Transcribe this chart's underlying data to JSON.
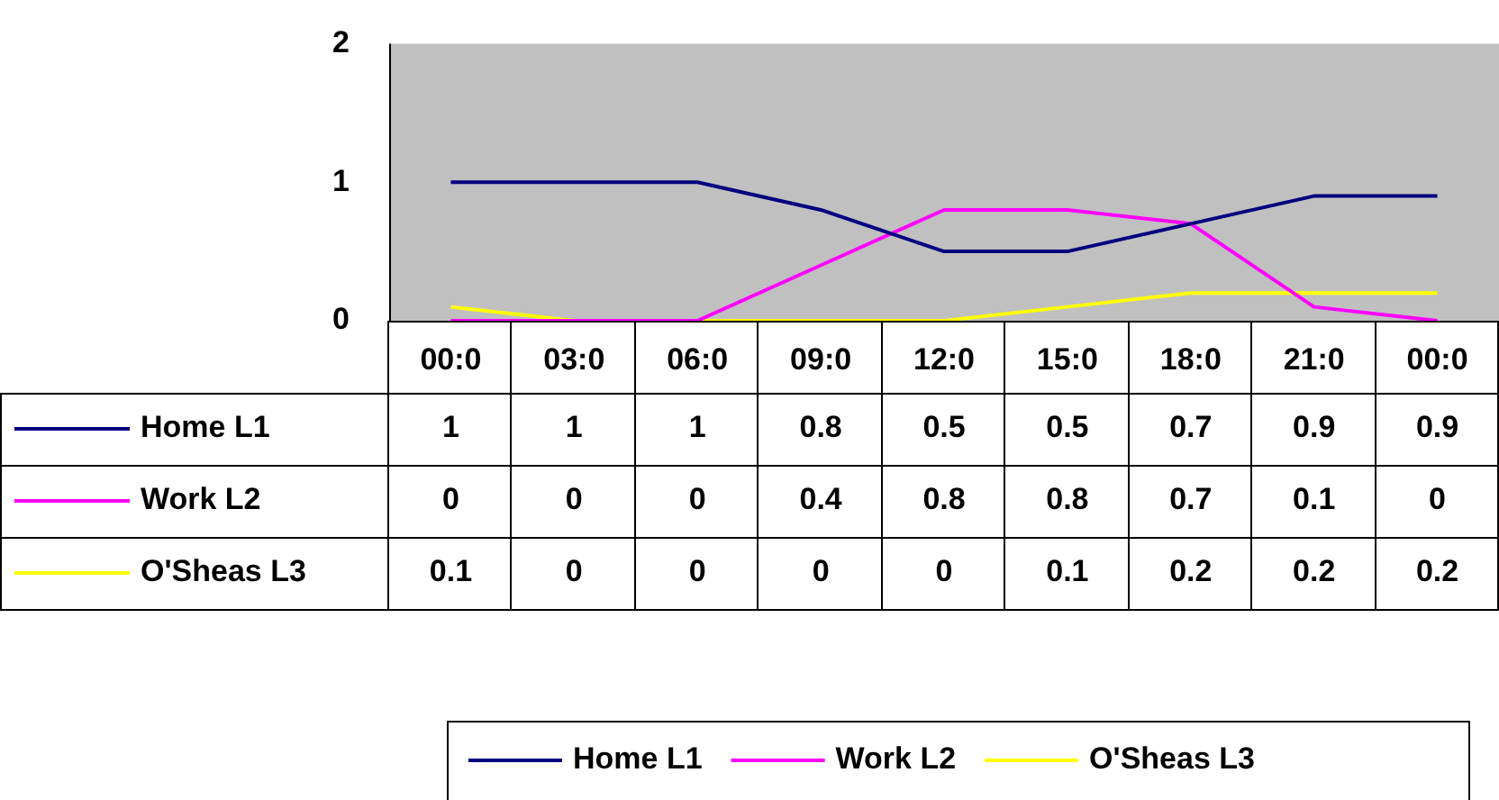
{
  "chart_data": {
    "type": "line",
    "categories": [
      "00:0",
      "03:0",
      "06:0",
      "09:0",
      "12:0",
      "15:0",
      "18:0",
      "21:0",
      "00:0"
    ],
    "series": [
      {
        "name": "Home L1",
        "color": "#000080",
        "values": [
          1,
          1,
          1,
          0.8,
          0.5,
          0.5,
          0.7,
          0.9,
          0.9
        ]
      },
      {
        "name": "Work L2",
        "color": "#ff00ff",
        "values": [
          0,
          0,
          0,
          0.4,
          0.8,
          0.8,
          0.7,
          0.1,
          0
        ]
      },
      {
        "name": "O'Sheas L3",
        "color": "#ffff00",
        "values": [
          0.1,
          0,
          0,
          0,
          0,
          0.1,
          0.2,
          0.2,
          0.2
        ]
      }
    ],
    "ylim": [
      0,
      2
    ],
    "yticks": [
      0,
      1,
      2
    ],
    "grid": false,
    "legend": "bottom",
    "data_labels": true,
    "marker": "none",
    "line_style": "solid"
  }
}
